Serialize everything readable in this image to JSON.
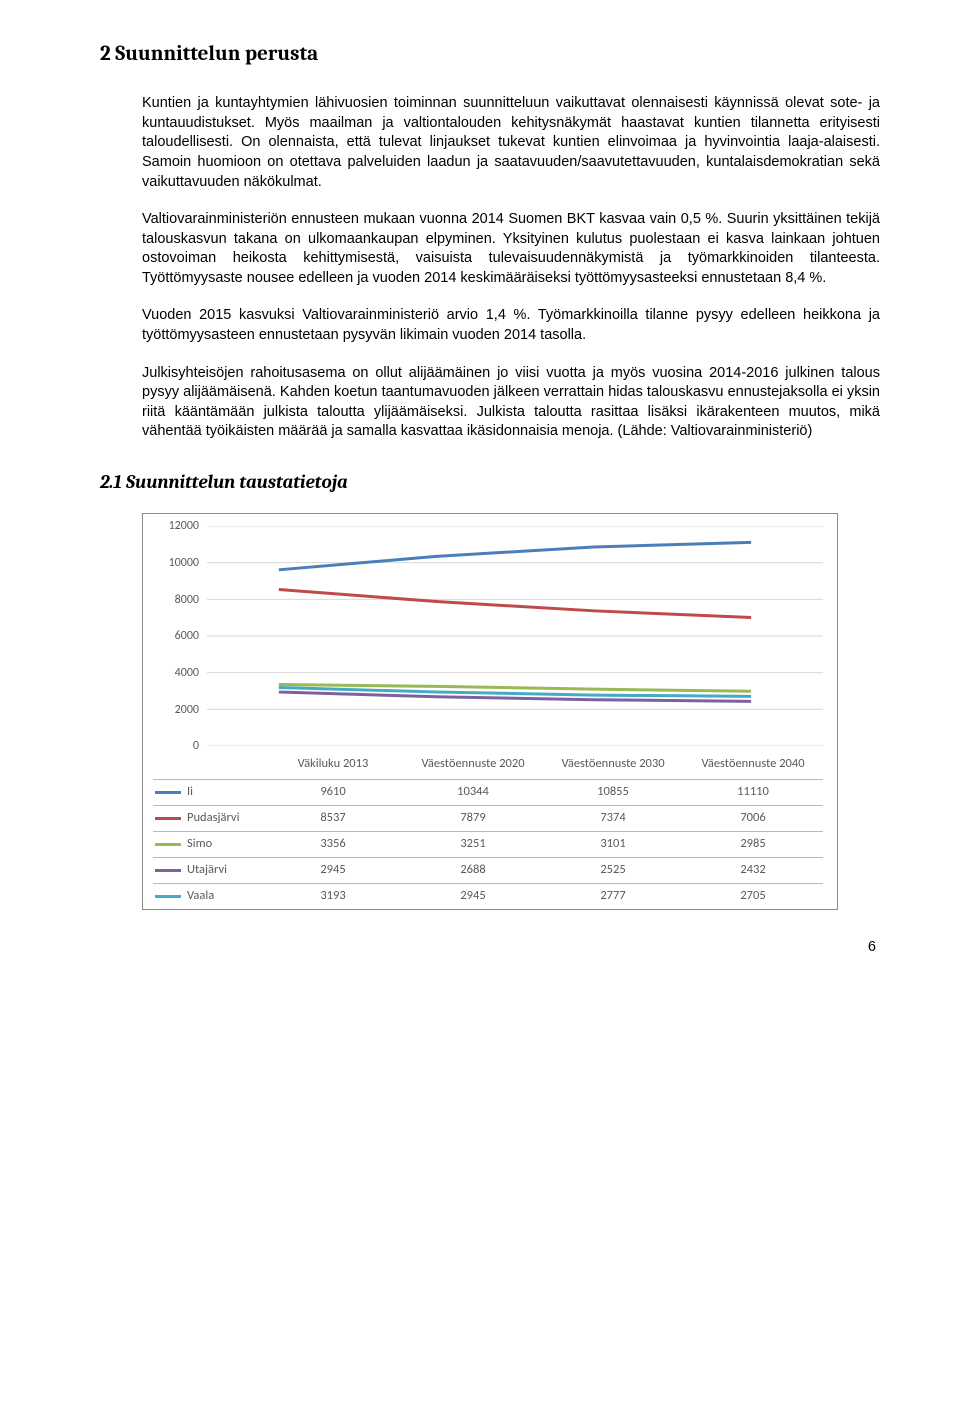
{
  "heading1": "2  Suunnittelun perusta",
  "p1": "Kuntien ja kuntayhtymien lähivuosien toiminnan suunnitteluun vaikuttavat olennaisesti käynnissä olevat sote- ja kuntauudistukset. Myös maailman ja valtiontalouden kehitysnäkymät haastavat kuntien tilannetta erityisesti taloudellisesti. On olennaista, että tulevat linjaukset tukevat kuntien elinvoimaa ja hyvinvointia laaja-alaisesti. Samoin huomioon on otettava palveluiden laadun ja saatavuuden/saavutettavuuden, kuntalaisdemokratian sekä vaikuttavuuden näkökulmat.",
  "p2": "Valtiovarainministeriön ennusteen mukaan vuonna 2014 Suomen BKT kasvaa vain 0,5 %. Suurin yksittäinen tekijä talouskasvun takana on ulkomaankaupan elpyminen. Yksityinen kulutus puolestaan ei kasva lainkaan johtuen ostovoiman heikosta kehittymisestä, vaisuista tulevaisuudennäkymistä ja työmarkkinoiden tilanteesta. Työttömyysaste nousee edelleen ja vuoden 2014 keskimääräiseksi työttömyysasteeksi ennustetaan 8,4 %.",
  "p3": "Vuoden 2015 kasvuksi Valtiovarainministeriö arvio 1,4 %. Työmarkkinoilla tilanne pysyy edelleen heikkona ja työttömyysasteen ennustetaan pysyvän likimain vuoden 2014 tasolla.",
  "p4": "Julkisyhteisöjen rahoitusasema on ollut alijäämäinen jo viisi vuotta ja myös vuosina 2014-2016 julkinen talous pysyy alijäämäisenä. Kahden koetun taantumavuoden jälkeen verrattain hidas talouskasvu ennustejaksolla ei yksin riitä kääntämään julkista taloutta ylijäämäiseksi. Julkista taloutta rasittaa lisäksi ikärakenteen muutos, mikä vähentää työikäisten määrää ja samalla kasvattaa ikäsidonnaisia menoja. (Lähde: Valtiovarainministeriö)",
  "heading2": "2.1  Suunnittelun taustatietoja",
  "chart": {
    "type": "line",
    "ylim": [
      0,
      12000
    ],
    "ytick_step": 2000,
    "yticks": [
      "0",
      "2000",
      "4000",
      "6000",
      "8000",
      "10000",
      "12000"
    ],
    "categories": [
      "Väkiluku 2013",
      "Väestöennuste 2020",
      "Väestöennuste 2030",
      "Väestöennuste 2040"
    ],
    "series": [
      {
        "name": "Ii",
        "color": "#4a7ebb",
        "values": [
          9610,
          10344,
          10855,
          11110
        ]
      },
      {
        "name": "Pudasjärvi",
        "color": "#be4b48",
        "values": [
          8537,
          7879,
          7374,
          7006
        ]
      },
      {
        "name": "Simo",
        "color": "#98b954",
        "values": [
          3356,
          3251,
          3101,
          2985
        ]
      },
      {
        "name": "Utajärvi",
        "color": "#7d60a0",
        "values": [
          2945,
          2688,
          2525,
          2432
        ]
      },
      {
        "name": "Vaala",
        "color": "#46aac5",
        "values": [
          3193,
          2945,
          2777,
          2705
        ]
      }
    ],
    "line_width": 3.0,
    "grid_color": "#d9d9d9",
    "label_color": "#595959",
    "label_fontsize": 12
  },
  "page_number": "6"
}
